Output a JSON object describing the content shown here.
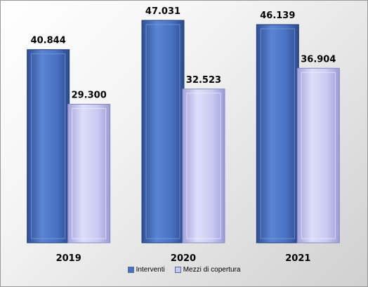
{
  "chart_data": {
    "type": "bar",
    "categories": [
      "2019",
      "2020",
      "2021"
    ],
    "series": [
      {
        "name": "Interventi",
        "values": [
          40844,
          47031,
          46139
        ],
        "labels": [
          "40.844",
          "47.031",
          "46.139"
        ],
        "color": "#4a72c4"
      },
      {
        "name": "Mezzi di copertura",
        "values": [
          29300,
          32523,
          36904
        ],
        "labels": [
          "29.300",
          "32.523",
          "36.904"
        ],
        "color": "#c8c8f4"
      }
    ],
    "ylim": [
      0,
      50000
    ],
    "grid": false,
    "legend_position": "bottom"
  }
}
